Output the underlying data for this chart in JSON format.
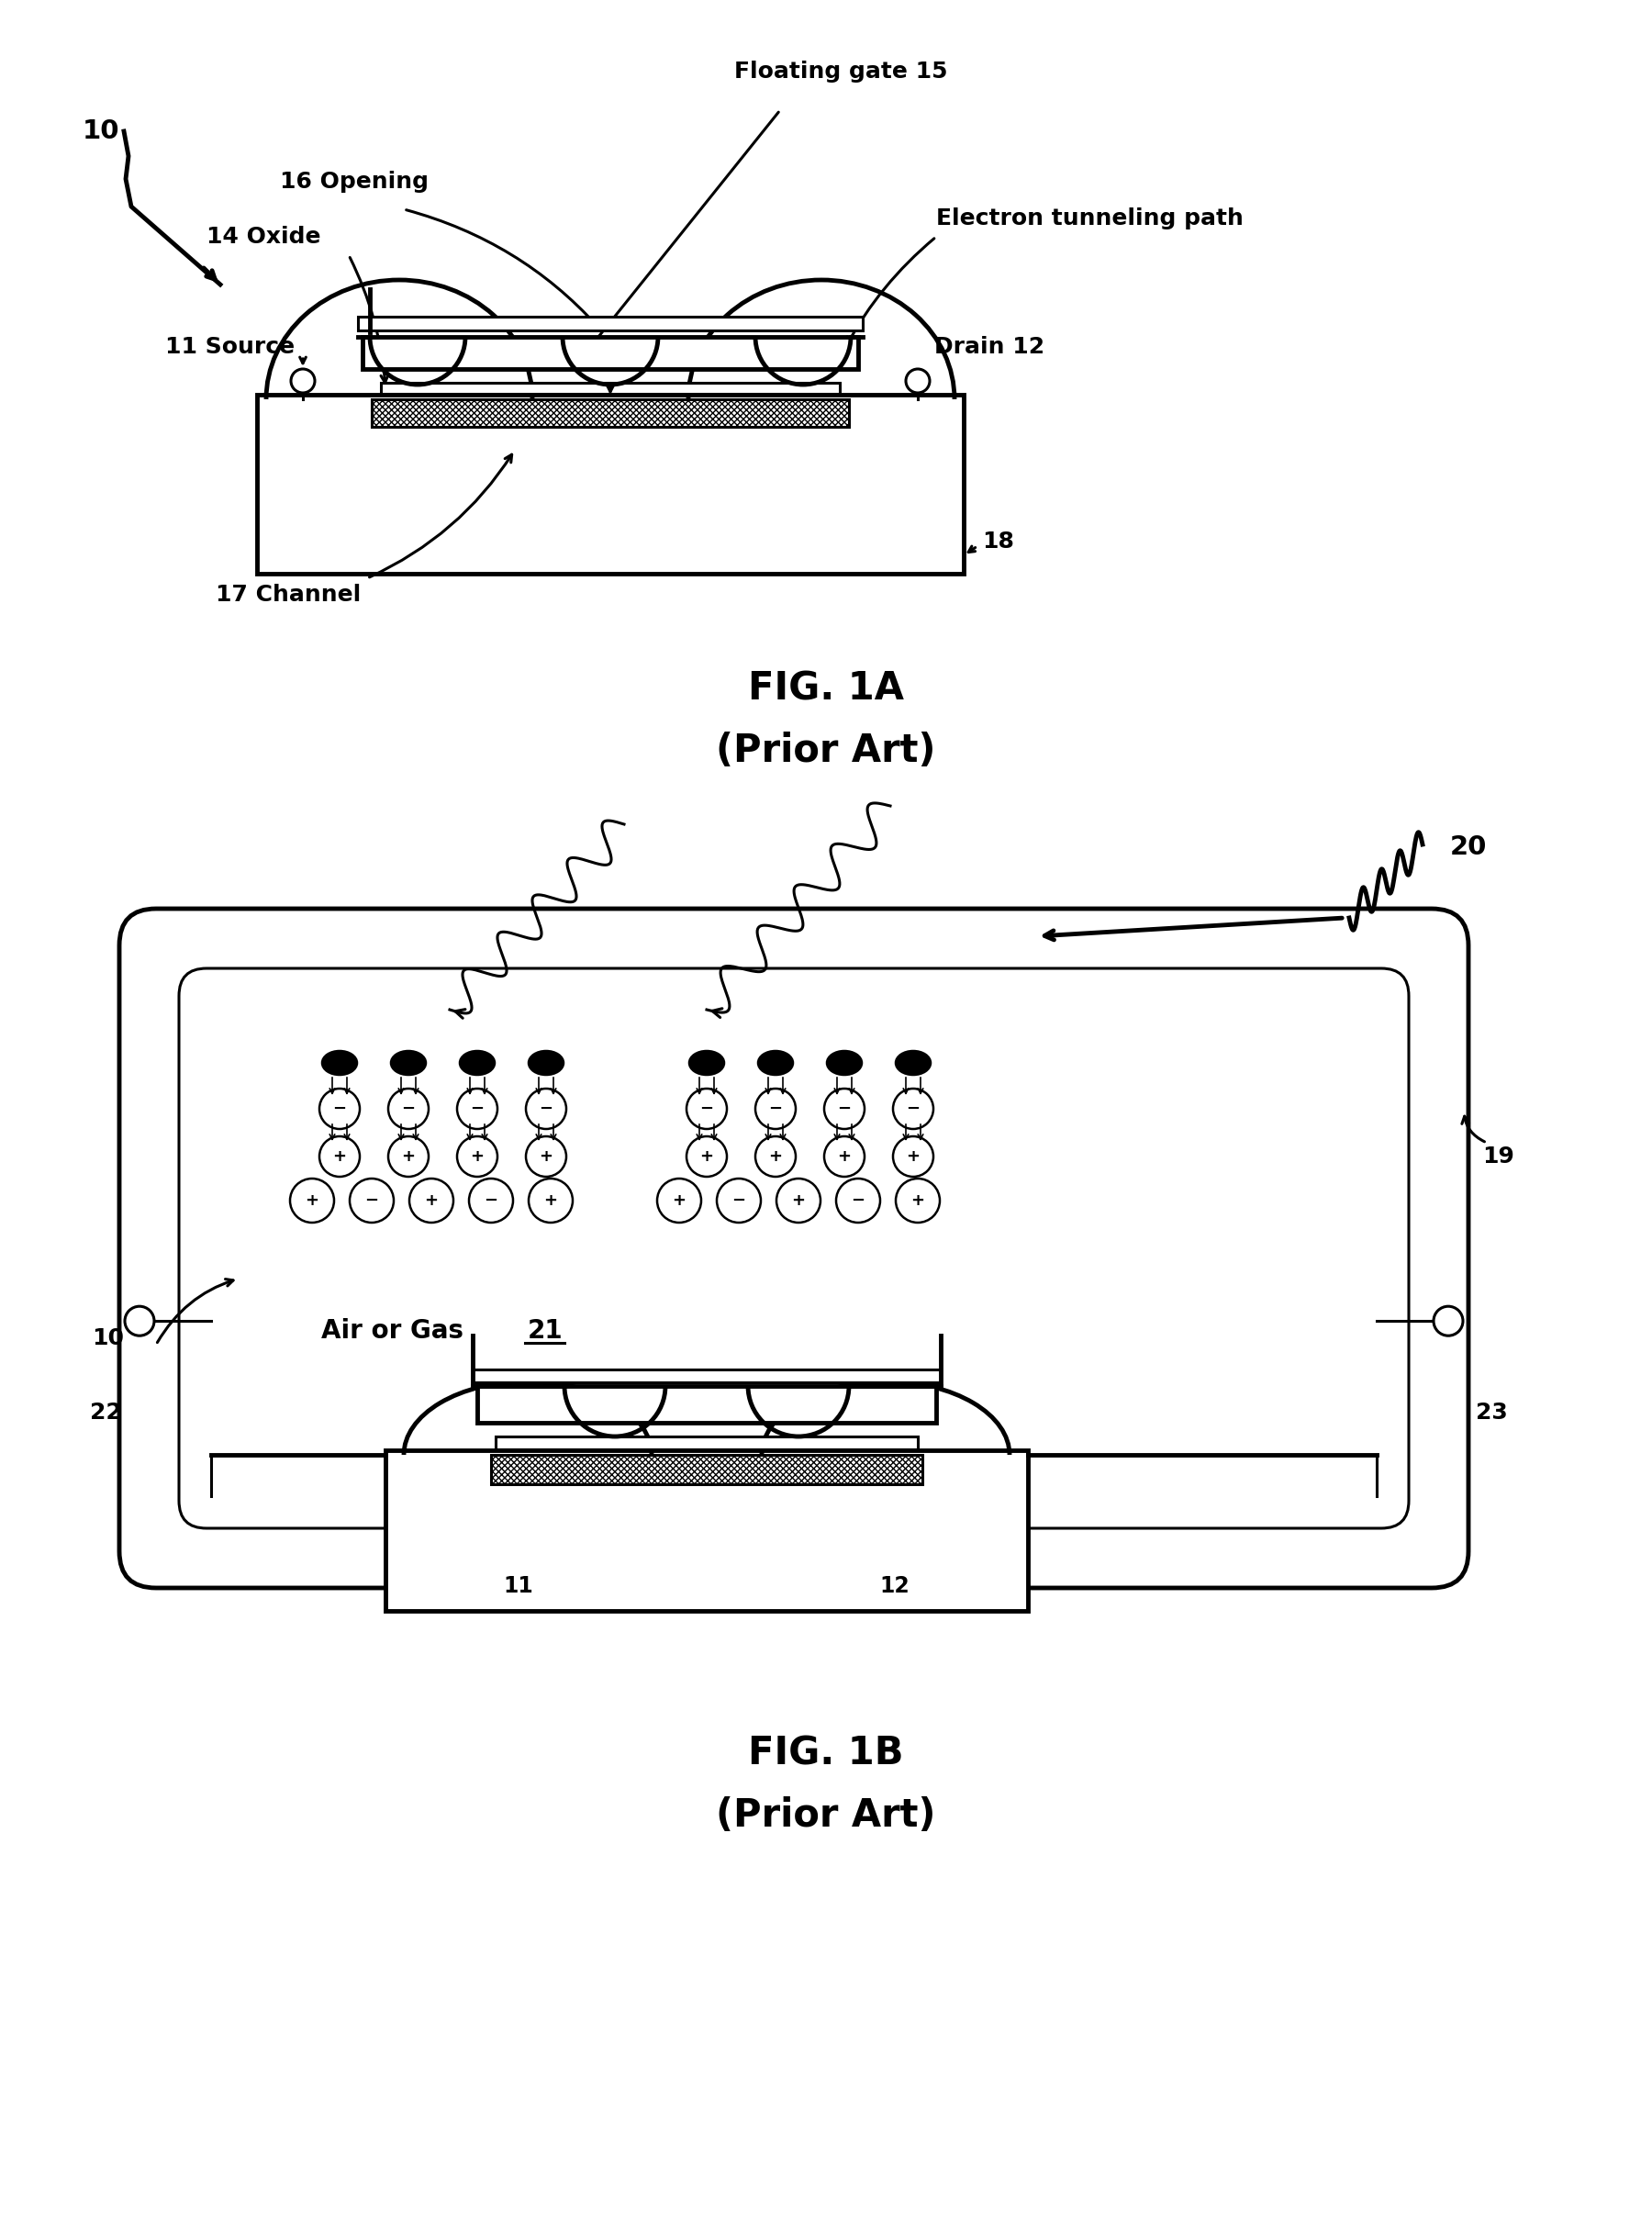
{
  "background_color": "#ffffff",
  "fig_width": 17.8,
  "fig_height": 23.91,
  "title_1a": "FIG. 1A",
  "subtitle_1a": "(Prior Art)",
  "title_1b": "FIG. 1B",
  "subtitle_1b": "(Prior Art)"
}
